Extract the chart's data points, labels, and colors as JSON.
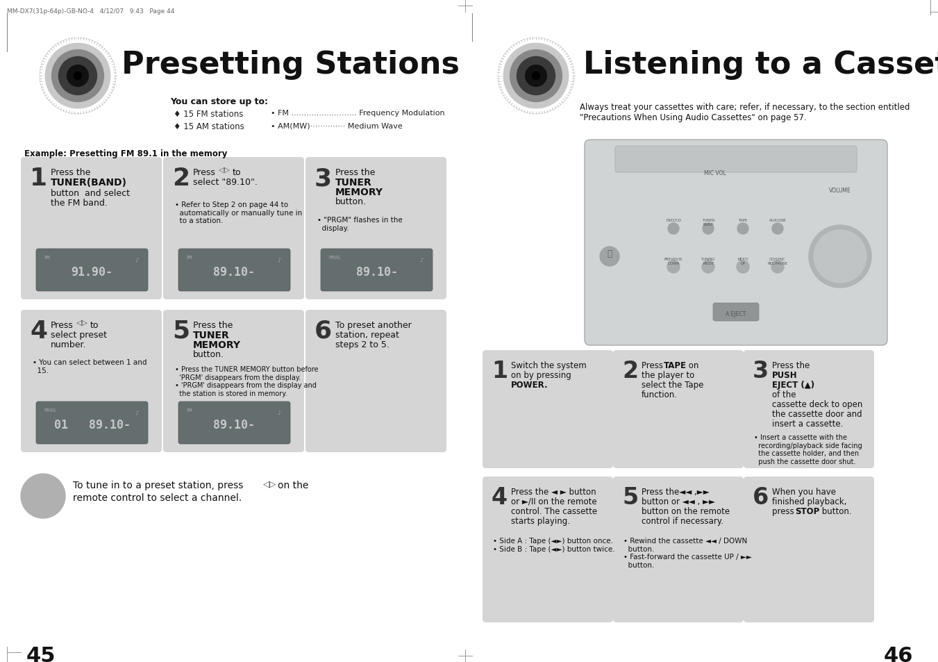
{
  "bg_color": "#ffffff",
  "left_title": "Presetting Stations",
  "right_title": "Listening to a Cassette",
  "print_info": "MM-DX7(31p-64p)-GB-NO-4   4/12/07   9:43   Page 44",
  "page_left": "45",
  "page_right": "46",
  "left_subtitle_bold": "You can store up to:",
  "left_bullet1": "♦ 15 FM stations",
  "left_bullet2": "♦ 15 AM stations",
  "right_bullet1": "• FM .......................... Frequency Modulation",
  "right_bullet2": "• AM(MW)·············· Medium Wave",
  "right_intro": "Always treat your cassettes with care; refer, if necessary, to the section entitled\n\"Precautions When Using Audio Cassettes\" on page 57.",
  "example_label": "Example: Presetting FM 89.1 in the memory",
  "step_bg": "#d8d8d8",
  "step_bg_light": "#e8e8e8",
  "display_bg": "#6a7070",
  "display_text": "#c8c8c8",
  "note_bullet": "•"
}
